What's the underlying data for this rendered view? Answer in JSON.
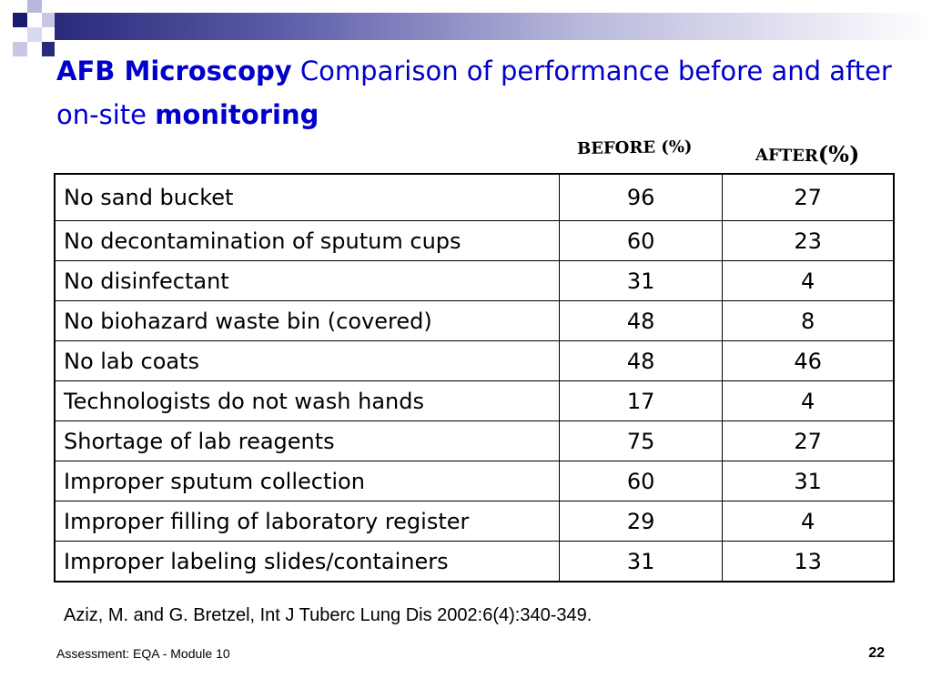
{
  "slide": {
    "title_bold_1": "AFB Microscopy",
    "title_regular": " Comparison of performance before and after on-site ",
    "title_bold_2": "monitoring"
  },
  "table": {
    "before_header": "BEFORE (%)",
    "after_header_word": "AFTER",
    "after_header_pct": "(%)",
    "rows": [
      {
        "label": "No sand bucket",
        "before": "96",
        "after": "27"
      },
      {
        "label": "No decontamination of sputum cups",
        "before": "60",
        "after": "23"
      },
      {
        "label": "No disinfectant",
        "before": "31",
        "after": "4"
      },
      {
        "label": "No biohazard waste bin (covered)",
        "before": "48",
        "after": "8"
      },
      {
        "label": "No lab coats",
        "before": "48",
        "after": "46"
      },
      {
        "label": "Technologists do not wash hands",
        "before": "17",
        "after": "4"
      },
      {
        "label": "Shortage of lab reagents",
        "before": "75",
        "after": "27"
      },
      {
        "label": "Improper sputum collection",
        "before": "60",
        "after": "31"
      },
      {
        "label": "Improper filling of laboratory register",
        "before": "29",
        "after": "4"
      },
      {
        "label": "Improper labeling slides/containers",
        "before": "31",
        "after": "13"
      }
    ]
  },
  "citation": "Aziz, M. and G. Bretzel, Int J Tuberc Lung Dis  2002:6(4):340-349.",
  "footer": {
    "left": "Assessment: EQA - Module 10",
    "page_number": "22"
  },
  "colors": {
    "title": "#0000cc",
    "decor_dark": "#2a2a7a",
    "decor_light": "#b8b8dc"
  }
}
